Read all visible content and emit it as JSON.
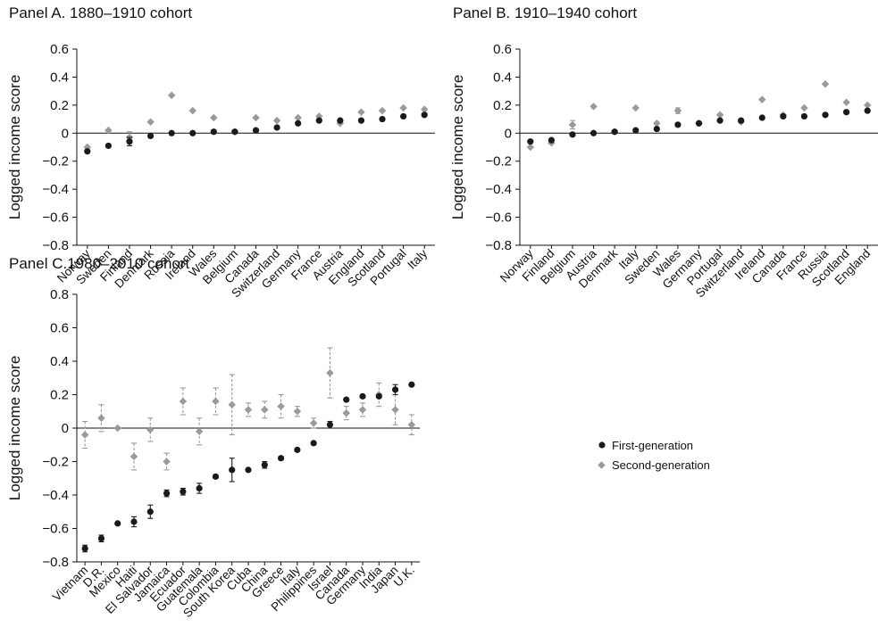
{
  "legend": {
    "first": "First-generation",
    "second": "Second-generation"
  },
  "colors": {
    "first": "#1a1a1a",
    "second": "#9a9a9a",
    "axis": "#111111"
  },
  "chart_data": [
    {
      "type": "scatter",
      "title": "Panel A. 1880–1910 cohort",
      "ylabel": "Logged income score",
      "ylim": [
        -0.8,
        0.6
      ],
      "yticks": [
        "0.6",
        "0.4",
        "0.2",
        "0",
        "−0.2",
        "−0.4",
        "−0.6",
        "−0.8"
      ],
      "ytick_values": [
        0.6,
        0.4,
        0.2,
        0,
        -0.2,
        -0.4,
        -0.6,
        -0.8
      ],
      "categories": [
        "Norway",
        "Sweden",
        "Finland",
        "Denmark",
        "Russia",
        "Ireland",
        "Wales",
        "Belgium",
        "Canada",
        "Switzerland",
        "Germany",
        "France",
        "Austria",
        "England",
        "Scotland",
        "Portugal",
        "Italy"
      ],
      "series": [
        {
          "name": "First-generation",
          "values": [
            -0.13,
            -0.09,
            -0.06,
            -0.02,
            0.0,
            0.0,
            0.01,
            0.01,
            0.02,
            0.04,
            0.07,
            0.09,
            0.09,
            0.09,
            0.1,
            0.12,
            0.13
          ],
          "errors": [
            0,
            0,
            0.03,
            0,
            0,
            0,
            0,
            0,
            0,
            0,
            0,
            0,
            0,
            0,
            0,
            0,
            0
          ]
        },
        {
          "name": "Second-generation",
          "values": [
            -0.1,
            0.02,
            -0.03,
            0.08,
            0.27,
            0.16,
            0.11,
            0.01,
            0.11,
            0.09,
            0.11,
            0.12,
            0.07,
            0.15,
            0.16,
            0.18,
            0.17
          ],
          "errors": [
            0,
            0,
            0.04,
            0,
            0,
            0,
            0,
            0,
            0,
            0,
            0,
            0,
            0,
            0,
            0,
            0,
            0
          ]
        }
      ]
    },
    {
      "type": "scatter",
      "title": "Panel B. 1910–1940 cohort",
      "ylabel": "Logged income score",
      "ylim": [
        -0.8,
        0.6
      ],
      "yticks": [
        "0.6",
        "0.4",
        "0.2",
        "0",
        "−0.2",
        "−0.4",
        "−0.6",
        "−0.8"
      ],
      "ytick_values": [
        0.6,
        0.4,
        0.2,
        0,
        -0.2,
        -0.4,
        -0.6,
        -0.8
      ],
      "categories": [
        "Norway",
        "Finland",
        "Belgium",
        "Austria",
        "Denmark",
        "Italy",
        "Sweden",
        "Wales",
        "Germany",
        "Portugal",
        "Switzerland",
        "Ireland",
        "Canada",
        "France",
        "Russia",
        "Scotland",
        "England"
      ],
      "series": [
        {
          "name": "First-generation",
          "values": [
            -0.06,
            -0.05,
            -0.01,
            0.0,
            0.01,
            0.02,
            0.03,
            0.06,
            0.07,
            0.09,
            0.09,
            0.11,
            0.12,
            0.12,
            0.13,
            0.15,
            0.16
          ],
          "errors": [
            0,
            0,
            0,
            0,
            0,
            0,
            0,
            0,
            0,
            0,
            0,
            0,
            0,
            0,
            0,
            0,
            0
          ]
        },
        {
          "name": "Second-generation",
          "values": [
            -0.1,
            -0.07,
            0.06,
            0.19,
            0.01,
            0.18,
            0.07,
            0.16,
            0.07,
            0.13,
            0.08,
            0.24,
            0.13,
            0.18,
            0.35,
            0.22,
            0.2
          ],
          "errors": [
            0,
            0,
            0.03,
            0,
            0,
            0,
            0,
            0.02,
            0,
            0,
            0,
            0,
            0,
            0,
            0,
            0,
            0
          ]
        }
      ]
    },
    {
      "type": "scatter",
      "title": "Panel C.1980–2010 cohort",
      "ylabel": "Logged income score",
      "ylim": [
        -0.8,
        0.8
      ],
      "yticks": [
        "0.8",
        "0.6",
        "0.4",
        "0.2",
        "0",
        "−0.2",
        "−0.4",
        "−0.6",
        "−0.8"
      ],
      "ytick_values": [
        0.8,
        0.6,
        0.4,
        0.2,
        0,
        -0.2,
        -0.4,
        -0.6,
        -0.8
      ],
      "categories": [
        "Vietnam",
        "D.R.",
        "Mexico",
        "Haiti",
        "El Salvador",
        "Jamaica",
        "Ecuador",
        "Guatemala",
        "Colombia",
        "South Korea",
        "Cuba",
        "China",
        "Greece",
        "Italy",
        "Philippines",
        "Israel",
        "Canada",
        "Germany",
        "India",
        "Japan",
        "U.K."
      ],
      "series": [
        {
          "name": "First-generation",
          "values": [
            -0.72,
            -0.66,
            -0.57,
            -0.56,
            -0.5,
            -0.39,
            -0.38,
            -0.36,
            -0.29,
            -0.25,
            -0.25,
            -0.22,
            -0.18,
            -0.13,
            -0.09,
            0.02,
            0.17,
            0.19,
            0.19,
            0.23,
            0.26
          ],
          "errors": [
            0.02,
            0.02,
            0,
            0.03,
            0.04,
            0.02,
            0.02,
            0.03,
            0.01,
            0.07,
            0,
            0.02,
            0.01,
            0,
            0,
            0.02,
            0,
            0,
            0,
            0.03,
            0
          ]
        },
        {
          "name": "Second-generation",
          "values": [
            -0.04,
            0.06,
            0.0,
            -0.17,
            -0.01,
            -0.2,
            0.16,
            -0.02,
            0.16,
            0.14,
            0.11,
            0.11,
            0.13,
            0.1,
            0.03,
            0.33,
            0.09,
            0.11,
            0.2,
            0.11,
            0.02
          ],
          "errors": [
            0.08,
            0.08,
            0,
            0.08,
            0.07,
            0.05,
            0.08,
            0.08,
            0.08,
            0.18,
            0.04,
            0.05,
            0.07,
            0.03,
            0.03,
            0.15,
            0.04,
            0.04,
            0.07,
            0.09,
            0.06
          ]
        }
      ]
    }
  ]
}
